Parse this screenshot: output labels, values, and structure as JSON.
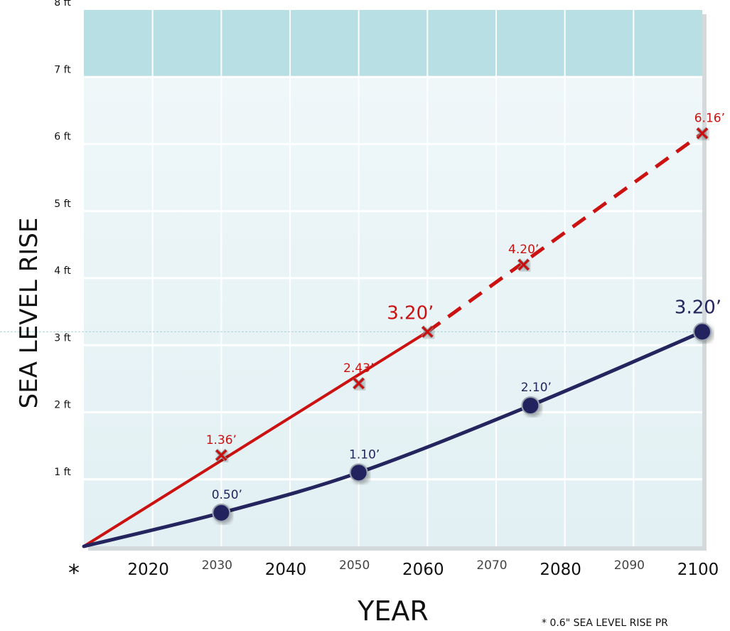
{
  "chart_data": {
    "type": "line",
    "xlabel": "YEAR",
    "ylabel": "SEA LEVEL RISE",
    "xlim": [
      2010,
      2100
    ],
    "ylim": [
      0,
      8
    ],
    "origin_marker": "*",
    "x_ticks": [
      {
        "value": 2020,
        "label": "2020",
        "emphasis": true
      },
      {
        "value": 2030,
        "label": "2030",
        "emphasis": false
      },
      {
        "value": 2040,
        "label": "2040",
        "emphasis": true
      },
      {
        "value": 2050,
        "label": "2050",
        "emphasis": false
      },
      {
        "value": 2060,
        "label": "2060",
        "emphasis": true
      },
      {
        "value": 2070,
        "label": "2070",
        "emphasis": false
      },
      {
        "value": 2080,
        "label": "2080",
        "emphasis": true
      },
      {
        "value": 2090,
        "label": "2090",
        "emphasis": false
      },
      {
        "value": 2100,
        "label": "2100",
        "emphasis": true
      }
    ],
    "y_ticks": [
      {
        "value": 1,
        "label": "1 ft"
      },
      {
        "value": 2,
        "label": "2 ft"
      },
      {
        "value": 3,
        "label": "3 ft"
      },
      {
        "value": 4,
        "label": "4 ft"
      },
      {
        "value": 5,
        "label": "5 ft"
      },
      {
        "value": 6,
        "label": "6 ft"
      },
      {
        "value": 7,
        "label": "7 ft"
      },
      {
        "value": 8,
        "label": "8 ft"
      }
    ],
    "shaded_band": {
      "from": 7,
      "to": 8
    },
    "reference_line": {
      "y": 3.2
    },
    "grid": true,
    "series": [
      {
        "color": "#cc1111",
        "marker": "x",
        "points": [
          {
            "x": 2010,
            "y": 0,
            "label": ""
          },
          {
            "x": 2030,
            "y": 1.36,
            "label": "1.36’"
          },
          {
            "x": 2050,
            "y": 2.43,
            "label": "2.43’"
          },
          {
            "x": 2060,
            "y": 3.2,
            "label": "3.20’"
          },
          {
            "x": 2074,
            "y": 4.2,
            "label": "4.20’"
          },
          {
            "x": 2100,
            "y": 6.16,
            "label": "6.16’"
          }
        ],
        "solid_until_x": 2060,
        "dashed_after_x": 2060
      },
      {
        "color": "#24245e",
        "marker": "circle",
        "points": [
          {
            "x": 2010,
            "y": 0,
            "label": ""
          },
          {
            "x": 2030,
            "y": 0.5,
            "label": "0.50’"
          },
          {
            "x": 2050,
            "y": 1.1,
            "label": "1.10’"
          },
          {
            "x": 2075,
            "y": 2.1,
            "label": "2.10’"
          },
          {
            "x": 2100,
            "y": 3.2,
            "label": "3.20’"
          }
        ]
      }
    ],
    "footnote": "* 0.6\" SEA LEVEL RISE PR"
  }
}
